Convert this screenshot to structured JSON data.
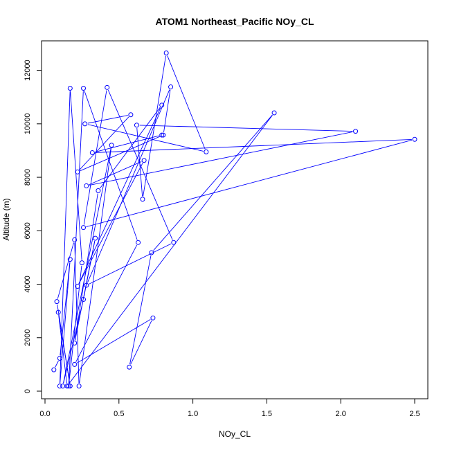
{
  "chart_data": {
    "type": "line",
    "title": "ATOM1 Northeast_Pacific NOy_CL",
    "xlabel": "NOy_CL",
    "ylabel": "Altitude (m)",
    "xlim": [
      0.0,
      2.5
    ],
    "ylim": [
      0,
      12700
    ],
    "xticks": [
      0.0,
      0.5,
      1.0,
      1.5,
      2.0,
      2.5
    ],
    "xtick_labels": [
      "0.0",
      "0.5",
      "1.0",
      "1.5",
      "2.0",
      "2.5"
    ],
    "yticks": [
      0,
      2000,
      4000,
      6000,
      8000,
      10000,
      12000
    ],
    "ytick_labels": [
      "0",
      "2000",
      "4000",
      "6000",
      "8000",
      "10000",
      "12000"
    ],
    "grid": false,
    "series_color": "#0000ff",
    "series": [
      {
        "points": [
          [
            0.06,
            800
          ],
          [
            0.1,
            1230
          ],
          [
            0.17,
            4930
          ],
          [
            0.1,
            190
          ],
          [
            0.17,
            11330
          ],
          [
            0.25,
            4800
          ],
          [
            0.16,
            190
          ],
          [
            0.26,
            11330
          ],
          [
            0.63,
            5560
          ],
          [
            0.2,
            1000
          ],
          [
            0.73,
            2740
          ],
          [
            0.57,
            900
          ],
          [
            0.72,
            5180
          ],
          [
            1.55,
            10410
          ],
          [
            0.15,
            190
          ],
          [
            0.09,
            2950
          ],
          [
            0.17,
            190
          ],
          [
            0.08,
            3350
          ],
          [
            0.2,
            5660
          ],
          [
            0.23,
            190
          ],
          [
            0.45,
            9200
          ],
          [
            0.12,
            190
          ],
          [
            0.26,
            3430
          ],
          [
            0.34,
            5720
          ],
          [
            0.2,
            1800
          ],
          [
            0.36,
            7500
          ],
          [
            0.79,
            10700
          ],
          [
            0.22,
            3920
          ],
          [
            0.67,
            8630
          ],
          [
            0.28,
            7680
          ],
          [
            2.1,
            9720
          ],
          [
            0.62,
            9950
          ],
          [
            0.66,
            7180
          ],
          [
            0.82,
            12650
          ],
          [
            1.09,
            8950
          ],
          [
            0.27,
            10000
          ],
          [
            0.58,
            10340
          ],
          [
            0.22,
            8200
          ],
          [
            0.8,
            9580
          ],
          [
            0.85,
            11380
          ],
          [
            0.28,
            3960
          ],
          [
            0.87,
            5560
          ],
          [
            0.42,
            11360
          ],
          [
            0.26,
            6120
          ],
          [
            2.5,
            9420
          ],
          [
            0.32,
            8920
          ],
          [
            0.79,
            9580
          ]
        ]
      }
    ]
  }
}
